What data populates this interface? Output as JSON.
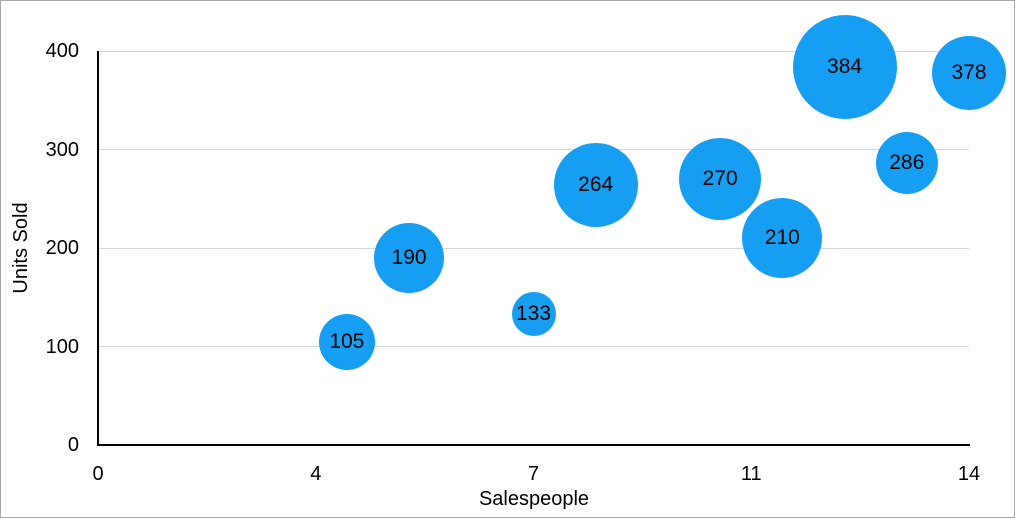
{
  "chart_data": {
    "type": "scatter",
    "subtype": "bubble",
    "title": "",
    "xlabel": "Salespeople",
    "ylabel": "Units Sold",
    "xlim": [
      0,
      14
    ],
    "ylim": [
      0,
      400
    ],
    "grid": "horizontal-only",
    "legend": "none",
    "x_ticks": [
      {
        "value": 0,
        "label": "0"
      },
      {
        "value": 3.5,
        "label": "4"
      },
      {
        "value": 7,
        "label": "7"
      },
      {
        "value": 10.5,
        "label": "11"
      },
      {
        "value": 14,
        "label": "14"
      }
    ],
    "y_ticks": [
      {
        "value": 0,
        "label": "0"
      },
      {
        "value": 100,
        "label": "100"
      },
      {
        "value": 200,
        "label": "200"
      },
      {
        "value": 300,
        "label": "300"
      },
      {
        "value": 400,
        "label": "400"
      }
    ],
    "points": [
      {
        "x": 4,
        "y": 105,
        "label": "105",
        "radius_px": 28
      },
      {
        "x": 5,
        "y": 190,
        "label": "190",
        "radius_px": 35
      },
      {
        "x": 7,
        "y": 133,
        "label": "133",
        "radius_px": 22
      },
      {
        "x": 8,
        "y": 264,
        "label": "264",
        "radius_px": 42
      },
      {
        "x": 10,
        "y": 270,
        "label": "270",
        "radius_px": 41
      },
      {
        "x": 11,
        "y": 210,
        "label": "210",
        "radius_px": 40
      },
      {
        "x": 12,
        "y": 384,
        "label": "384",
        "radius_px": 52
      },
      {
        "x": 13,
        "y": 286,
        "label": "286",
        "radius_px": 31
      },
      {
        "x": 14,
        "y": 378,
        "label": "378",
        "radius_px": 37
      }
    ],
    "colors": {
      "bubble": "#169EF3",
      "grid": "#d7d7d7",
      "axis": "#000000",
      "text": "#000000",
      "frame_border": "#a8a8a8"
    }
  }
}
